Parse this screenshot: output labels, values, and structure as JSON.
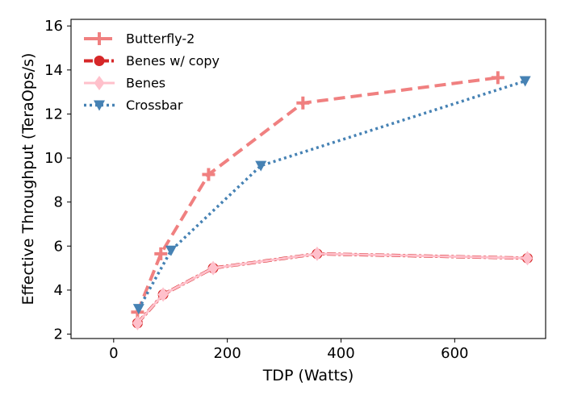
{
  "chart_data": {
    "type": "line",
    "title": "",
    "xlabel": "TDP (Watts)",
    "ylabel": "Effective Throughput (TeraOps/s)",
    "xlim": [
      -75,
      760
    ],
    "ylim": [
      1.8,
      16.3
    ],
    "xticks": [
      0,
      200,
      400,
      600
    ],
    "yticks": [
      2,
      4,
      6,
      8,
      10,
      12,
      14,
      16
    ],
    "grid": false,
    "legend_position": "top-left",
    "series": [
      {
        "name": "Butterfly-2",
        "color": "#f08080",
        "line_style": "dashed",
        "marker": "plus",
        "x": [
          42,
          83,
          167,
          333,
          676
        ],
        "y": [
          3.0,
          5.65,
          9.25,
          12.5,
          13.65
        ]
      },
      {
        "name": "Benes w/ copy",
        "color": "#d62728",
        "line_style": "dashdot",
        "marker": "circle",
        "x": [
          42,
          87,
          175,
          358,
          728
        ],
        "y": [
          2.5,
          3.8,
          5.0,
          5.65,
          5.45
        ]
      },
      {
        "name": "Benes",
        "color": "#ffc0cb",
        "line_style": "solid",
        "marker": "diamond",
        "x": [
          42,
          87,
          175,
          358,
          728
        ],
        "y": [
          2.5,
          3.8,
          5.0,
          5.65,
          5.45
        ]
      },
      {
        "name": "Crossbar",
        "color": "#4682b4",
        "line_style": "dotted",
        "marker": "triangle-down",
        "x": [
          44,
          101,
          259,
          724
        ],
        "y": [
          3.15,
          5.8,
          9.65,
          13.5
        ]
      }
    ]
  }
}
